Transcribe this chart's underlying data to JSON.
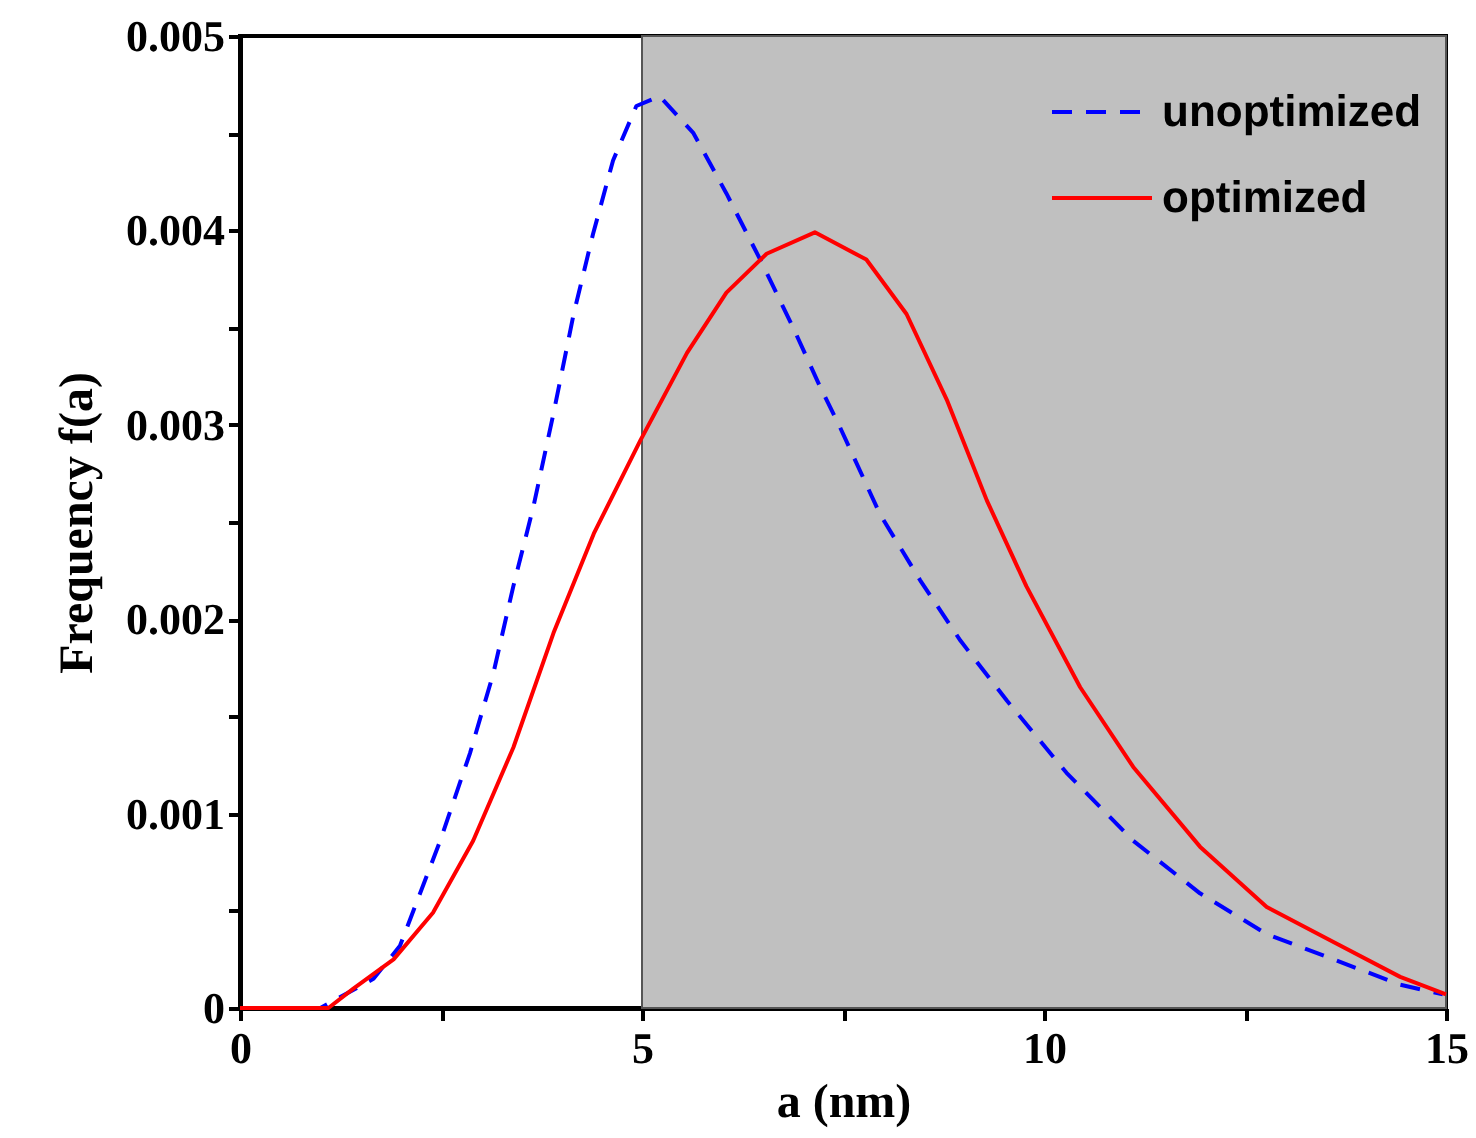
{
  "chart_data": {
    "type": "line",
    "xlabel": "a (nm)",
    "ylabel": "Frequency f(a)",
    "xlim": [
      0,
      15
    ],
    "xticks": [
      0,
      {
        "value": 2.5,
        "label": null
      },
      5,
      {
        "value": 7.5,
        "label": null
      },
      10,
      {
        "value": 12.5,
        "label": null
      },
      15
    ],
    "ylim": [
      0,
      0.005
    ],
    "yticks": [
      0,
      {
        "value": 0.0005,
        "label": null
      },
      0.001,
      {
        "value": 0.0015,
        "label": null
      },
      0.002,
      {
        "value": 0.0025,
        "label": null
      },
      0.003,
      {
        "value": 0.0035,
        "label": null
      },
      0.004,
      {
        "value": 0.0045,
        "label": null
      },
      0.005
    ],
    "grid": false,
    "legend": "top right",
    "bands": [
      {
        "axis": "x",
        "from": 5,
        "to": 15,
        "color": "#c0c0c0"
      }
    ],
    "series": [
      {
        "name": "unoptimized",
        "color": "#0000ff",
        "line_style": "dashed",
        "x": [
          0,
          1.0,
          1.66,
          1.99,
          2.49,
          2.86,
          3.15,
          3.4,
          3.65,
          3.9,
          4.15,
          4.39,
          4.64,
          4.93,
          5.22,
          5.64,
          6.05,
          6.47,
          6.88,
          7.21,
          7.46,
          7.96,
          8.46,
          8.96,
          9.54,
          10.28,
          11.11,
          11.94,
          12.77,
          13.6,
          14.43,
          14.96
        ],
        "values": [
          0,
          0,
          0.00015,
          0.00032,
          0.00086,
          0.00131,
          0.00172,
          0.00217,
          0.00258,
          0.00306,
          0.00357,
          0.00398,
          0.00436,
          0.00464,
          0.00469,
          0.0045,
          0.00419,
          0.00385,
          0.0035,
          0.0032,
          0.00299,
          0.00254,
          0.0022,
          0.00189,
          0.00158,
          0.00121,
          0.00086,
          0.00059,
          0.00038,
          0.00025,
          0.00012,
          7e-05
        ]
      },
      {
        "name": "optimized",
        "color": "#ff0000",
        "line_style": "solid",
        "x": [
          0,
          1.1,
          1.41,
          1.91,
          2.4,
          2.9,
          3.4,
          3.9,
          4.4,
          4.98,
          5.56,
          6.05,
          6.55,
          7.15,
          7.79,
          8.29,
          8.79,
          9.29,
          9.78,
          10.45,
          11.11,
          11.94,
          12.77,
          13.6,
          14.43,
          15
        ],
        "values": [
          0,
          0,
          0.0001,
          0.00025,
          0.00049,
          0.00086,
          0.00134,
          0.00193,
          0.00244,
          0.00292,
          0.00337,
          0.00368,
          0.00388,
          0.00399,
          0.00385,
          0.00357,
          0.00313,
          0.00261,
          0.00217,
          0.00165,
          0.00124,
          0.00083,
          0.00052,
          0.00034,
          0.00016,
          7e-05
        ]
      }
    ]
  }
}
